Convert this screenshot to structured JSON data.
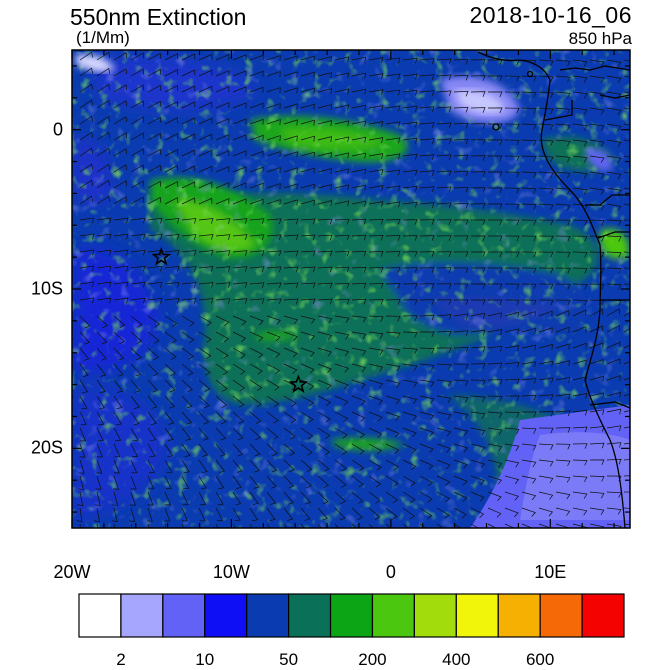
{
  "header": {
    "title": "550nm Extinction",
    "units": "(1/Mm)",
    "datetime": "2018-10-16_06",
    "level": "850 hPa"
  },
  "axes": {
    "x_ticks": [
      {
        "label": "20W",
        "lon": -20
      },
      {
        "label": "10W",
        "lon": -10
      },
      {
        "label": "0",
        "lon": 0
      },
      {
        "label": "10E",
        "lon": 10
      }
    ],
    "y_ticks": [
      {
        "label": "0",
        "lat": 0
      },
      {
        "label": "10S",
        "lat": -10
      },
      {
        "label": "20S",
        "lat": -20
      }
    ],
    "lon_range": [
      -20,
      15
    ],
    "lat_range": [
      -25,
      5
    ]
  },
  "markers": [
    {
      "type": "star",
      "lon": -14.4,
      "lat": -8.0
    },
    {
      "type": "star",
      "lon": -5.8,
      "lat": -16.0
    }
  ],
  "colorbar": {
    "colors": [
      "#ffffff",
      "#a6a6ff",
      "#6262f6",
      "#0f0ff5",
      "#0a3bb0",
      "#0b7058",
      "#0ba515",
      "#4cc70f",
      "#a2dc0c",
      "#f0f50a",
      "#f6b002",
      "#f56a06",
      "#f40202"
    ],
    "labels": [
      {
        "text": "2",
        "index": 1
      },
      {
        "text": "10",
        "index": 3
      },
      {
        "text": "50",
        "index": 5
      },
      {
        "text": "200",
        "index": 7
      },
      {
        "text": "400",
        "index": 9
      },
      {
        "text": "600",
        "index": 11
      }
    ]
  }
}
